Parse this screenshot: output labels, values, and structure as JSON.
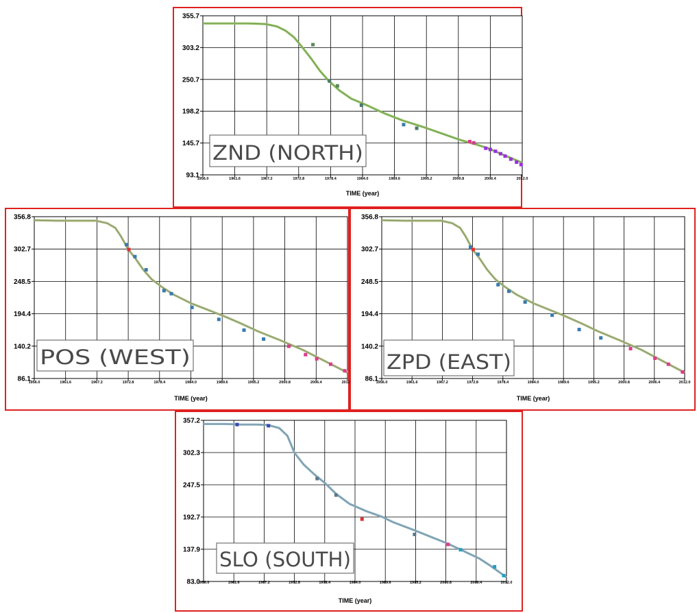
{
  "chart_data": [
    {
      "type": "line",
      "label": "ZND (NORTH)",
      "xlabel": "TIME (year)",
      "ylabel": "",
      "xlim": [
        1956.0,
        2012.0
      ],
      "ylim": [
        93.1,
        355.7
      ],
      "y_ticks": [
        "355.7",
        "303.2",
        "250.7",
        "198.2",
        "145.7",
        "93.1"
      ],
      "x_ticks": [
        "1956.0",
        "1961.6",
        "1967.2",
        "1972.8",
        "1978.4",
        "1984.0",
        "1989.6",
        "1995.2",
        "2000.8",
        "2006.4",
        "2012.0"
      ],
      "grid": true,
      "line_color": "#8cbf5a",
      "series": [
        {
          "x": [
            1956.0,
            1960.0,
            1964.0,
            1967.0,
            1969.0,
            1970.5,
            1972.0,
            1973.5,
            1975.0,
            1976.5,
            1978.0,
            1980.0,
            1982.0,
            1985.0,
            1988.0,
            1991.0,
            1995.0,
            1998.0,
            2001.0,
            2004.0,
            2006.0,
            2008.0,
            2010.0,
            2012.0
          ],
          "y": [
            343,
            343,
            343,
            342,
            338,
            331,
            320,
            303,
            285,
            265,
            249,
            232,
            219,
            207,
            194,
            183,
            171,
            161,
            151,
            143,
            137,
            129,
            121,
            113
          ]
        }
      ],
      "markers": [
        {
          "x": 1975.3,
          "y": 308,
          "color": "#5a8a5a"
        },
        {
          "x": 1978.2,
          "y": 248,
          "color": "#4a7a6a"
        },
        {
          "x": 1979.6,
          "y": 240,
          "color": "#5a8a5a"
        },
        {
          "x": 1983.8,
          "y": 208,
          "color": "#4a7a6a"
        },
        {
          "x": 1991.2,
          "y": 176,
          "color": "#3a7ab0"
        },
        {
          "x": 1993.5,
          "y": 170,
          "color": "#4a7a6a"
        },
        {
          "x": 2002.8,
          "y": 148,
          "color": "#e03a8a"
        },
        {
          "x": 2003.5,
          "y": 146,
          "color": "#d04090"
        },
        {
          "x": 2005.6,
          "y": 137,
          "color": "#9b30e0"
        },
        {
          "x": 2006.4,
          "y": 135,
          "color": "#9b30e0"
        },
        {
          "x": 2007.3,
          "y": 132,
          "color": "#9b30e0"
        },
        {
          "x": 2008.2,
          "y": 128,
          "color": "#9b30e0"
        },
        {
          "x": 2009.0,
          "y": 124,
          "color": "#9b30e0"
        },
        {
          "x": 2010.0,
          "y": 119,
          "color": "#9b30e0"
        },
        {
          "x": 2011.0,
          "y": 114,
          "color": "#9b30e0"
        },
        {
          "x": 2011.8,
          "y": 110,
          "color": "#9b30e0"
        }
      ]
    },
    {
      "type": "line",
      "label": "POS (WEST)",
      "xlabel": "TIME (year)",
      "ylabel": "",
      "xlim": [
        1956.0,
        2012.0
      ],
      "ylim": [
        86.1,
        356.8
      ],
      "y_ticks": [
        "356.8",
        "302.7",
        "248.5",
        "194.4",
        "140.2",
        "86.1"
      ],
      "x_ticks": [
        "1956.0",
        "1961.6",
        "1967.2",
        "1972.8",
        "1978.4",
        "1984.0",
        "1989.6",
        "1995.2",
        "2000.8",
        "2006.4",
        "2012.0"
      ],
      "grid": true,
      "line_color": "#a8b87a",
      "series": [
        {
          "x": [
            1956.0,
            1960.0,
            1964.0,
            1967.0,
            1969.0,
            1970.5,
            1971.5,
            1972.8,
            1974.0,
            1975.5,
            1977.0,
            1979.0,
            1981.0,
            1984.0,
            1987.0,
            1990.0,
            1993.0,
            1996.0,
            2000.0,
            2004.0,
            2008.0,
            2012.0
          ],
          "y": [
            351,
            350,
            350,
            350,
            346,
            338,
            324,
            302,
            288,
            268,
            252,
            238,
            226,
            212,
            201,
            190,
            178,
            165,
            150,
            134,
            115,
            96
          ]
        }
      ],
      "markers": [
        {
          "x": 1972.5,
          "y": 310,
          "color": "#3a7ab0"
        },
        {
          "x": 1972.9,
          "y": 302,
          "color": "#e03030"
        },
        {
          "x": 1974.0,
          "y": 290,
          "color": "#3a7ab0"
        },
        {
          "x": 1976.0,
          "y": 268,
          "color": "#3a7ab0"
        },
        {
          "x": 1979.2,
          "y": 233,
          "color": "#3a7ab0"
        },
        {
          "x": 1980.5,
          "y": 228,
          "color": "#3a7ab0"
        },
        {
          "x": 1984.2,
          "y": 205,
          "color": "#3a7ab0"
        },
        {
          "x": 1989.0,
          "y": 185,
          "color": "#3a7ab0"
        },
        {
          "x": 1993.5,
          "y": 167,
          "color": "#3a7ab0"
        },
        {
          "x": 1997.0,
          "y": 152,
          "color": "#3a7ab0"
        },
        {
          "x": 2001.5,
          "y": 140,
          "color": "#e03a8a"
        },
        {
          "x": 2004.5,
          "y": 126,
          "color": "#e03a8a"
        },
        {
          "x": 2006.5,
          "y": 119,
          "color": "#e03a8a"
        },
        {
          "x": 2009.0,
          "y": 110,
          "color": "#e03a8a"
        },
        {
          "x": 2011.5,
          "y": 99,
          "color": "#e03a8a"
        }
      ]
    },
    {
      "type": "line",
      "label": "ZPD (EAST)",
      "xlabel": "TIME (year)",
      "ylabel": "",
      "xlim": [
        1956.0,
        2012.0
      ],
      "ylim": [
        86.1,
        356.8
      ],
      "y_ticks": [
        "356.8",
        "302.7",
        "248.5",
        "194.4",
        "140.2",
        "86.1"
      ],
      "x_ticks": [
        "1956.0",
        "1961.6",
        "1967.2",
        "1972.8",
        "1978.4",
        "1984.0",
        "1989.6",
        "1995.2",
        "2000.8",
        "2006.4",
        "2012.0"
      ],
      "grid": true,
      "line_color": "#a8b87a",
      "series": [
        {
          "x": [
            1956.0,
            1960.0,
            1964.0,
            1967.0,
            1969.0,
            1970.5,
            1971.5,
            1972.8,
            1974.0,
            1975.5,
            1977.0,
            1979.0,
            1981.0,
            1984.0,
            1987.0,
            1990.0,
            1993.0,
            1996.0,
            2000.0,
            2004.0,
            2008.0,
            2012.0
          ],
          "y": [
            351,
            350,
            350,
            350,
            346,
            338,
            324,
            302,
            288,
            268,
            252,
            238,
            226,
            212,
            201,
            190,
            178,
            165,
            150,
            134,
            115,
            96
          ]
        }
      ],
      "markers": [
        {
          "x": 1972.4,
          "y": 306,
          "color": "#3a7ab0"
        },
        {
          "x": 1972.9,
          "y": 302,
          "color": "#e03030"
        },
        {
          "x": 1973.8,
          "y": 294,
          "color": "#3a7ab0"
        },
        {
          "x": 1977.5,
          "y": 243,
          "color": "#3a7ab0"
        },
        {
          "x": 1979.5,
          "y": 232,
          "color": "#3a7ab0"
        },
        {
          "x": 1982.5,
          "y": 214,
          "color": "#3a7ab0"
        },
        {
          "x": 1987.5,
          "y": 192,
          "color": "#3a7ab0"
        },
        {
          "x": 1992.5,
          "y": 168,
          "color": "#3a7ab0"
        },
        {
          "x": 1996.5,
          "y": 154,
          "color": "#3a7ab0"
        },
        {
          "x": 2002.0,
          "y": 136,
          "color": "#e03a8a"
        },
        {
          "x": 2006.5,
          "y": 120,
          "color": "#e03a8a"
        },
        {
          "x": 2009.0,
          "y": 110,
          "color": "#e03a8a"
        },
        {
          "x": 2011.6,
          "y": 97,
          "color": "#e03a8a"
        }
      ]
    },
    {
      "type": "line",
      "label": "SLO (SOUTH)",
      "xlabel": "TIME (year)",
      "ylabel": "",
      "xlim": [
        1956.0,
        2012.0
      ],
      "ylim": [
        83.0,
        357.2
      ],
      "y_ticks": [
        "357.2",
        "302.3",
        "247.5",
        "192.7",
        "137.9",
        "83.0"
      ],
      "x_ticks": [
        "1956.0",
        "1961.6",
        "1967.2",
        "1972.8",
        "1978.4",
        "1984.0",
        "1989.6",
        "1995.2",
        "2000.8",
        "2006.4",
        "2012.0"
      ],
      "grid": true,
      "line_color": "#8ab0c8",
      "series": [
        {
          "x": [
            1956.0,
            1960.0,
            1963.0,
            1966.0,
            1968.0,
            1970.0,
            1971.5,
            1972.8,
            1974.5,
            1976.5,
            1978.5,
            1980.5,
            1983.0,
            1986.0,
            1989.0,
            1991.0,
            1993.0,
            1995.0,
            1998.0,
            2001.0,
            2004.0,
            2007.0,
            2009.0,
            2010.5,
            2012.0
          ],
          "y": [
            351,
            351,
            350,
            350,
            349,
            344,
            331,
            302,
            282,
            265,
            250,
            232,
            215,
            203,
            193,
            184,
            177,
            170,
            159,
            148,
            135,
            122,
            110,
            100,
            90
          ]
        }
      ],
      "markers": [
        {
          "x": 1962.2,
          "y": 350,
          "color": "#3a4ab0"
        },
        {
          "x": 1968.0,
          "y": 348,
          "color": "#3a4ab0"
        },
        {
          "x": 1977.0,
          "y": 258,
          "color": "#5a7a8a"
        },
        {
          "x": 1980.5,
          "y": 230,
          "color": "#5a7a8a"
        },
        {
          "x": 1985.3,
          "y": 189,
          "color": "#e03030"
        },
        {
          "x": 1995.0,
          "y": 163,
          "color": "#5a7a8a"
        },
        {
          "x": 2001.2,
          "y": 146,
          "color": "#e03a8a"
        },
        {
          "x": 2003.5,
          "y": 137,
          "color": "#20a0c0"
        },
        {
          "x": 2009.8,
          "y": 108,
          "color": "#20a0c0"
        },
        {
          "x": 2011.5,
          "y": 93,
          "color": "#20a0c0"
        }
      ]
    }
  ]
}
